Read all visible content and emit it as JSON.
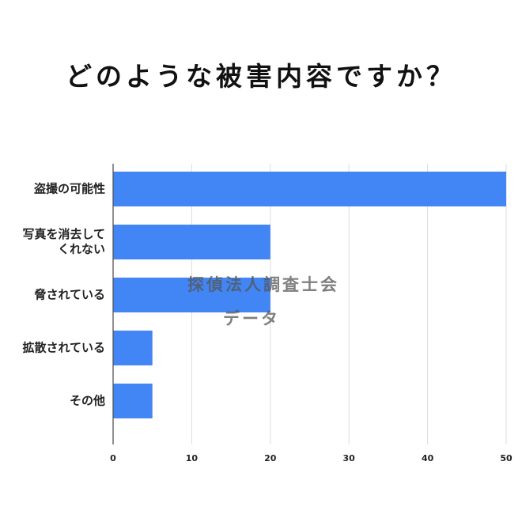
{
  "chart_data": {
    "type": "bar",
    "orientation": "horizontal",
    "title": "どのような被害内容ですか？",
    "categories": [
      [
        "盗撮の可能性"
      ],
      [
        "写真を消去して",
        "くれない"
      ],
      [
        "脅されている"
      ],
      [
        "拡散されている"
      ],
      [
        "その他"
      ]
    ],
    "values": [
      50,
      20,
      20,
      5,
      5
    ],
    "xlim": [
      0,
      50
    ],
    "xticks": [
      0,
      10,
      20,
      30,
      40,
      50
    ],
    "xlabel": "",
    "ylabel": "",
    "grid": true,
    "legend": "none",
    "bar_color": "#4285f4",
    "grid_color": "#dddddd",
    "axis_color": "#555555"
  },
  "watermark": {
    "line1": "探偵法人調査士会",
    "line2": "データ"
  }
}
